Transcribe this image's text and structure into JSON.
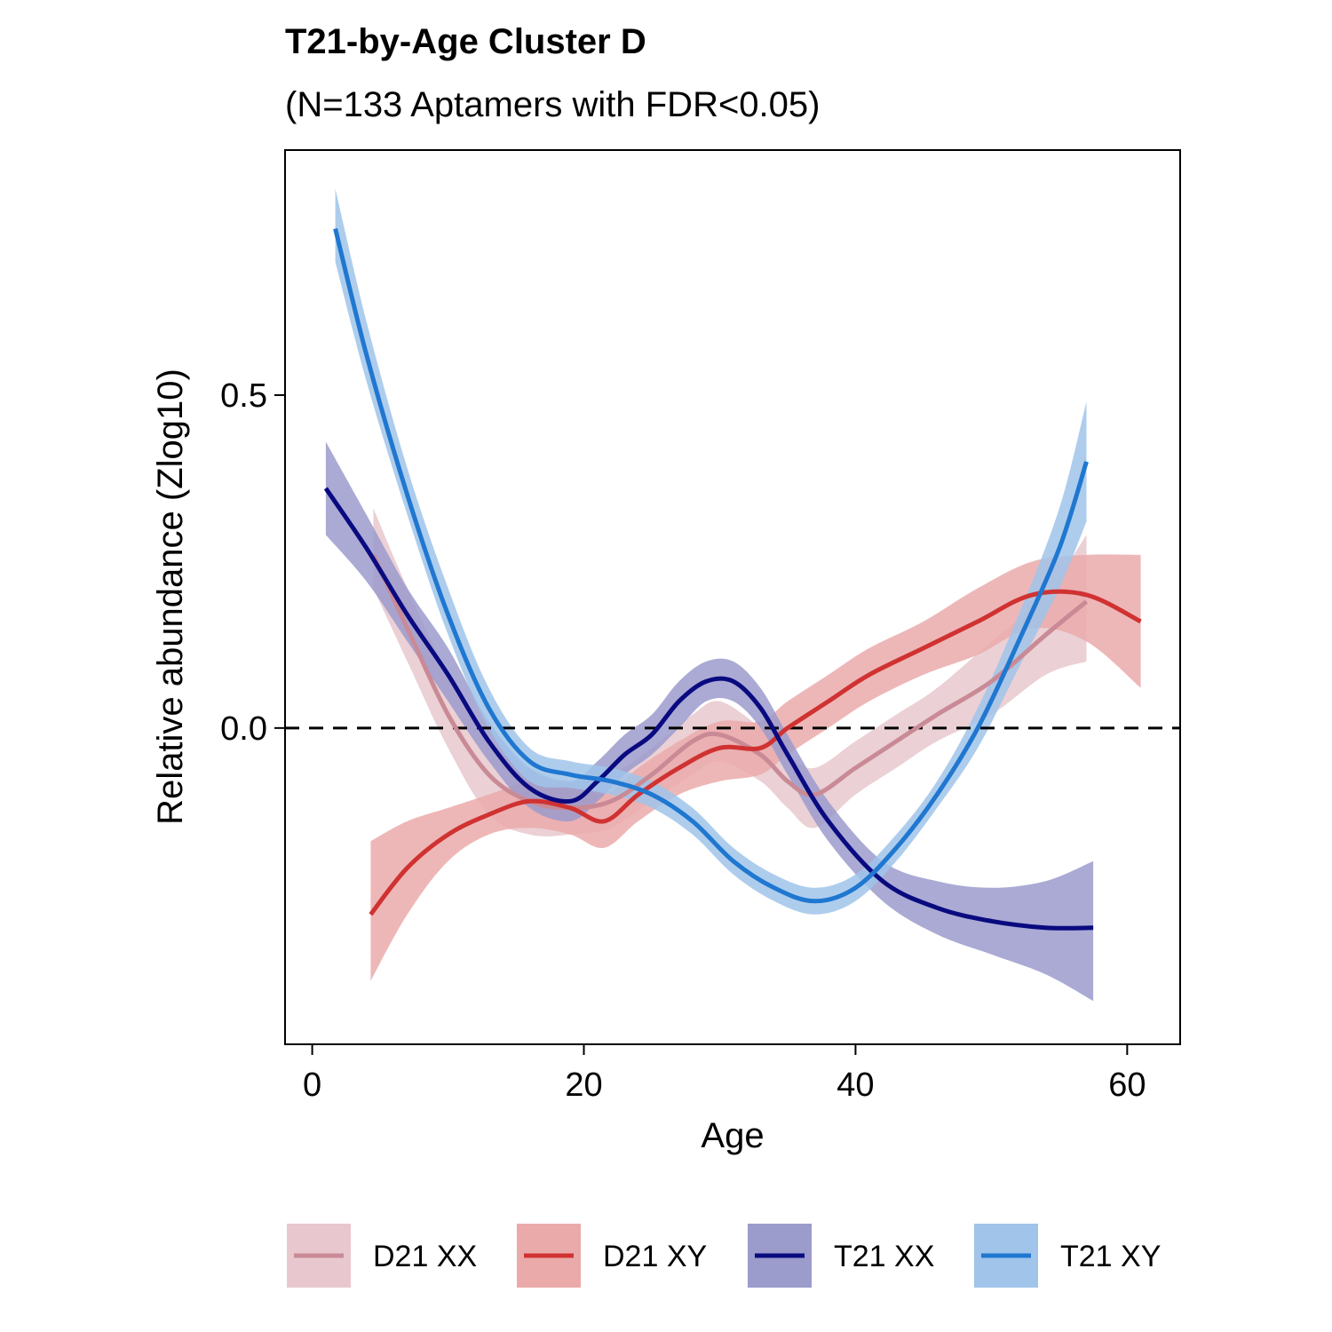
{
  "chart_data": {
    "type": "line",
    "title": "T21-by-Age Cluster D",
    "subtitle": "(N=133 Aptamers with FDR<0.05)",
    "xlabel": "Age",
    "ylabel": "Relative abundance (Zlog10)",
    "xlim": [
      -2.0,
      63.9
    ],
    "ylim": [
      -0.475,
      0.868
    ],
    "x_ticks": [
      0,
      20,
      40,
      60
    ],
    "y_ticks": [
      0.0,
      0.5
    ],
    "x_tick_labels": [
      "0",
      "20",
      "40",
      "60"
    ],
    "y_tick_labels": [
      "0.0",
      "0.5"
    ],
    "reference_line": {
      "y": 0,
      "style": "dashed",
      "color": "#000000"
    },
    "grid": false,
    "legend_position": "bottom",
    "series": [
      {
        "name": "D21 XX",
        "line_color": "#c98a96",
        "band_color": "#e8c8ce",
        "x": [
          4.5,
          7,
          10,
          13,
          16,
          19,
          22,
          25,
          28,
          30,
          33,
          35,
          37,
          40,
          43,
          46,
          50,
          54,
          57
        ],
        "y": [
          0.26,
          0.15,
          0.02,
          -0.07,
          -0.11,
          -0.12,
          -0.11,
          -0.07,
          -0.02,
          -0.01,
          -0.04,
          -0.08,
          -0.1,
          -0.06,
          -0.02,
          0.02,
          0.07,
          0.14,
          0.19
        ],
        "lower": [
          0.21,
          0.1,
          -0.03,
          -0.13,
          -0.16,
          -0.16,
          -0.15,
          -0.11,
          -0.07,
          -0.05,
          -0.08,
          -0.12,
          -0.15,
          -0.1,
          -0.06,
          -0.02,
          0.02,
          0.08,
          0.1
        ],
        "upper": [
          0.33,
          0.21,
          0.08,
          -0.02,
          -0.06,
          -0.08,
          -0.07,
          -0.03,
          0.02,
          0.04,
          0.0,
          -0.04,
          -0.06,
          -0.02,
          0.02,
          0.06,
          0.13,
          0.2,
          0.29
        ]
      },
      {
        "name": "D21 XY",
        "line_color": "#d03232",
        "band_color": "#ebaaaa",
        "x": [
          4.3,
          7,
          10,
          13,
          16,
          19,
          21.5,
          24,
          27,
          30,
          33,
          35,
          38,
          41,
          45,
          49,
          53,
          57,
          61
        ],
        "y": [
          -0.28,
          -0.21,
          -0.16,
          -0.13,
          -0.11,
          -0.12,
          -0.14,
          -0.1,
          -0.06,
          -0.03,
          -0.03,
          0.0,
          0.04,
          0.08,
          0.12,
          0.16,
          0.2,
          0.2,
          0.16
        ],
        "lower": [
          -0.38,
          -0.28,
          -0.2,
          -0.16,
          -0.15,
          -0.16,
          -0.18,
          -0.14,
          -0.1,
          -0.08,
          -0.07,
          -0.04,
          0.0,
          0.04,
          0.08,
          0.11,
          0.15,
          0.13,
          0.06
        ],
        "upper": [
          -0.17,
          -0.14,
          -0.12,
          -0.1,
          -0.08,
          -0.08,
          -0.1,
          -0.06,
          -0.02,
          0.01,
          0.01,
          0.04,
          0.08,
          0.12,
          0.16,
          0.21,
          0.25,
          0.26,
          0.26
        ]
      },
      {
        "name": "T21 XX",
        "line_color": "#0a0a80",
        "band_color": "#9b9bcc",
        "x": [
          1,
          4,
          7,
          10,
          13,
          16,
          19,
          21,
          23,
          25,
          27,
          29,
          31,
          33,
          35,
          38,
          42,
          46,
          50,
          54,
          57.5
        ],
        "y": [
          0.36,
          0.27,
          0.17,
          0.08,
          -0.02,
          -0.09,
          -0.11,
          -0.08,
          -0.04,
          -0.01,
          0.04,
          0.07,
          0.07,
          0.03,
          -0.04,
          -0.14,
          -0.23,
          -0.27,
          -0.29,
          -0.3,
          -0.3
        ],
        "lower": [
          0.29,
          0.22,
          0.13,
          0.04,
          -0.05,
          -0.12,
          -0.14,
          -0.11,
          -0.07,
          -0.04,
          0.0,
          0.04,
          0.04,
          0.0,
          -0.07,
          -0.17,
          -0.26,
          -0.31,
          -0.34,
          -0.37,
          -0.41
        ],
        "upper": [
          0.43,
          0.32,
          0.21,
          0.12,
          0.01,
          -0.06,
          -0.08,
          -0.05,
          -0.01,
          0.02,
          0.07,
          0.1,
          0.1,
          0.06,
          -0.01,
          -0.11,
          -0.2,
          -0.23,
          -0.24,
          -0.23,
          -0.2
        ]
      },
      {
        "name": "T21 XY",
        "line_color": "#1f77d0",
        "band_color": "#a0c4ea",
        "x": [
          1.7,
          4,
          7,
          10,
          13,
          16,
          19,
          22,
          25,
          28,
          31,
          34,
          37,
          40,
          43,
          46,
          49,
          52,
          55,
          57
        ],
        "y": [
          0.75,
          0.56,
          0.35,
          0.17,
          0.03,
          -0.05,
          -0.07,
          -0.08,
          -0.1,
          -0.14,
          -0.2,
          -0.24,
          -0.26,
          -0.24,
          -0.18,
          -0.1,
          0.0,
          0.13,
          0.27,
          0.4
        ],
        "lower": [
          0.7,
          0.52,
          0.32,
          0.14,
          0.0,
          -0.08,
          -0.09,
          -0.1,
          -0.12,
          -0.16,
          -0.22,
          -0.26,
          -0.28,
          -0.26,
          -0.2,
          -0.12,
          -0.03,
          0.09,
          0.21,
          0.31
        ],
        "upper": [
          0.81,
          0.61,
          0.39,
          0.21,
          0.06,
          -0.03,
          -0.05,
          -0.06,
          -0.08,
          -0.12,
          -0.18,
          -0.22,
          -0.24,
          -0.22,
          -0.16,
          -0.08,
          0.03,
          0.17,
          0.33,
          0.49
        ]
      }
    ]
  }
}
